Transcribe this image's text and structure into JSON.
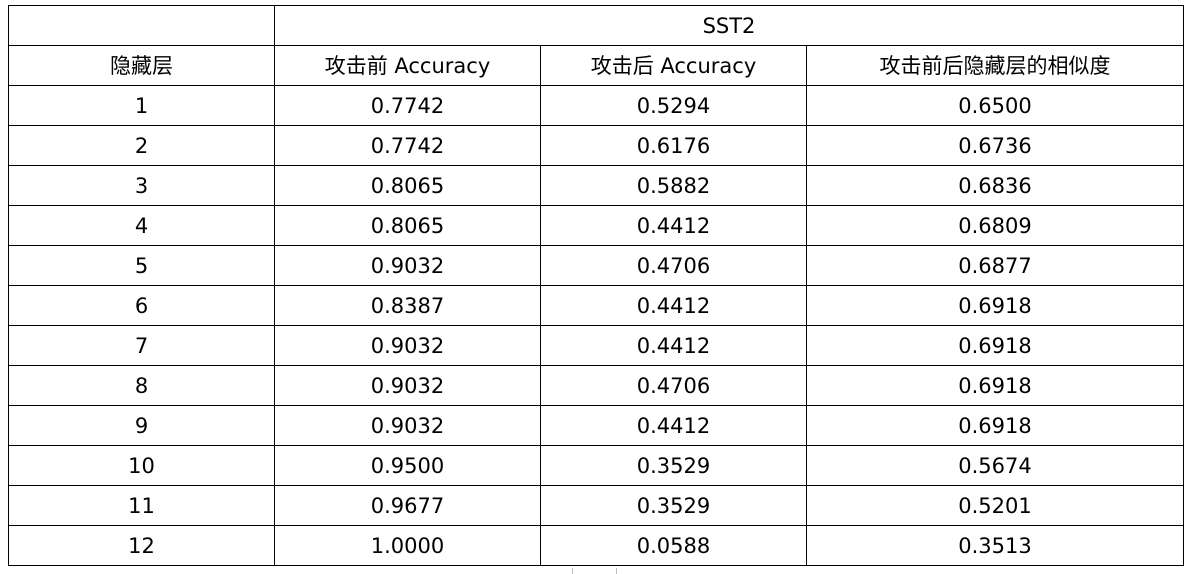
{
  "table": {
    "group_header": "SST2",
    "columns": [
      "隐藏层",
      "攻击前 Accuracy",
      "攻击后 Accuracy",
      "攻击前后隐藏层的相似度"
    ],
    "rows": [
      [
        "1",
        "0.7742",
        "0.5294",
        "0.6500"
      ],
      [
        "2",
        "0.7742",
        "0.6176",
        "0.6736"
      ],
      [
        "3",
        "0.8065",
        "0.5882",
        "0.6836"
      ],
      [
        "4",
        "0.8065",
        "0.4412",
        "0.6809"
      ],
      [
        "5",
        "0.9032",
        "0.4706",
        "0.6877"
      ],
      [
        "6",
        "0.8387",
        "0.4412",
        "0.6918"
      ],
      [
        "7",
        "0.9032",
        "0.4412",
        "0.6918"
      ],
      [
        "8",
        "0.9032",
        "0.4706",
        "0.6918"
      ],
      [
        "9",
        "0.9032",
        "0.4412",
        "0.6918"
      ],
      [
        "10",
        "0.9500",
        "0.3529",
        "0.5674"
      ],
      [
        "11",
        "0.9677",
        "0.3529",
        "0.5201"
      ],
      [
        "12",
        "1.0000",
        "0.0588",
        "0.3513"
      ]
    ]
  }
}
